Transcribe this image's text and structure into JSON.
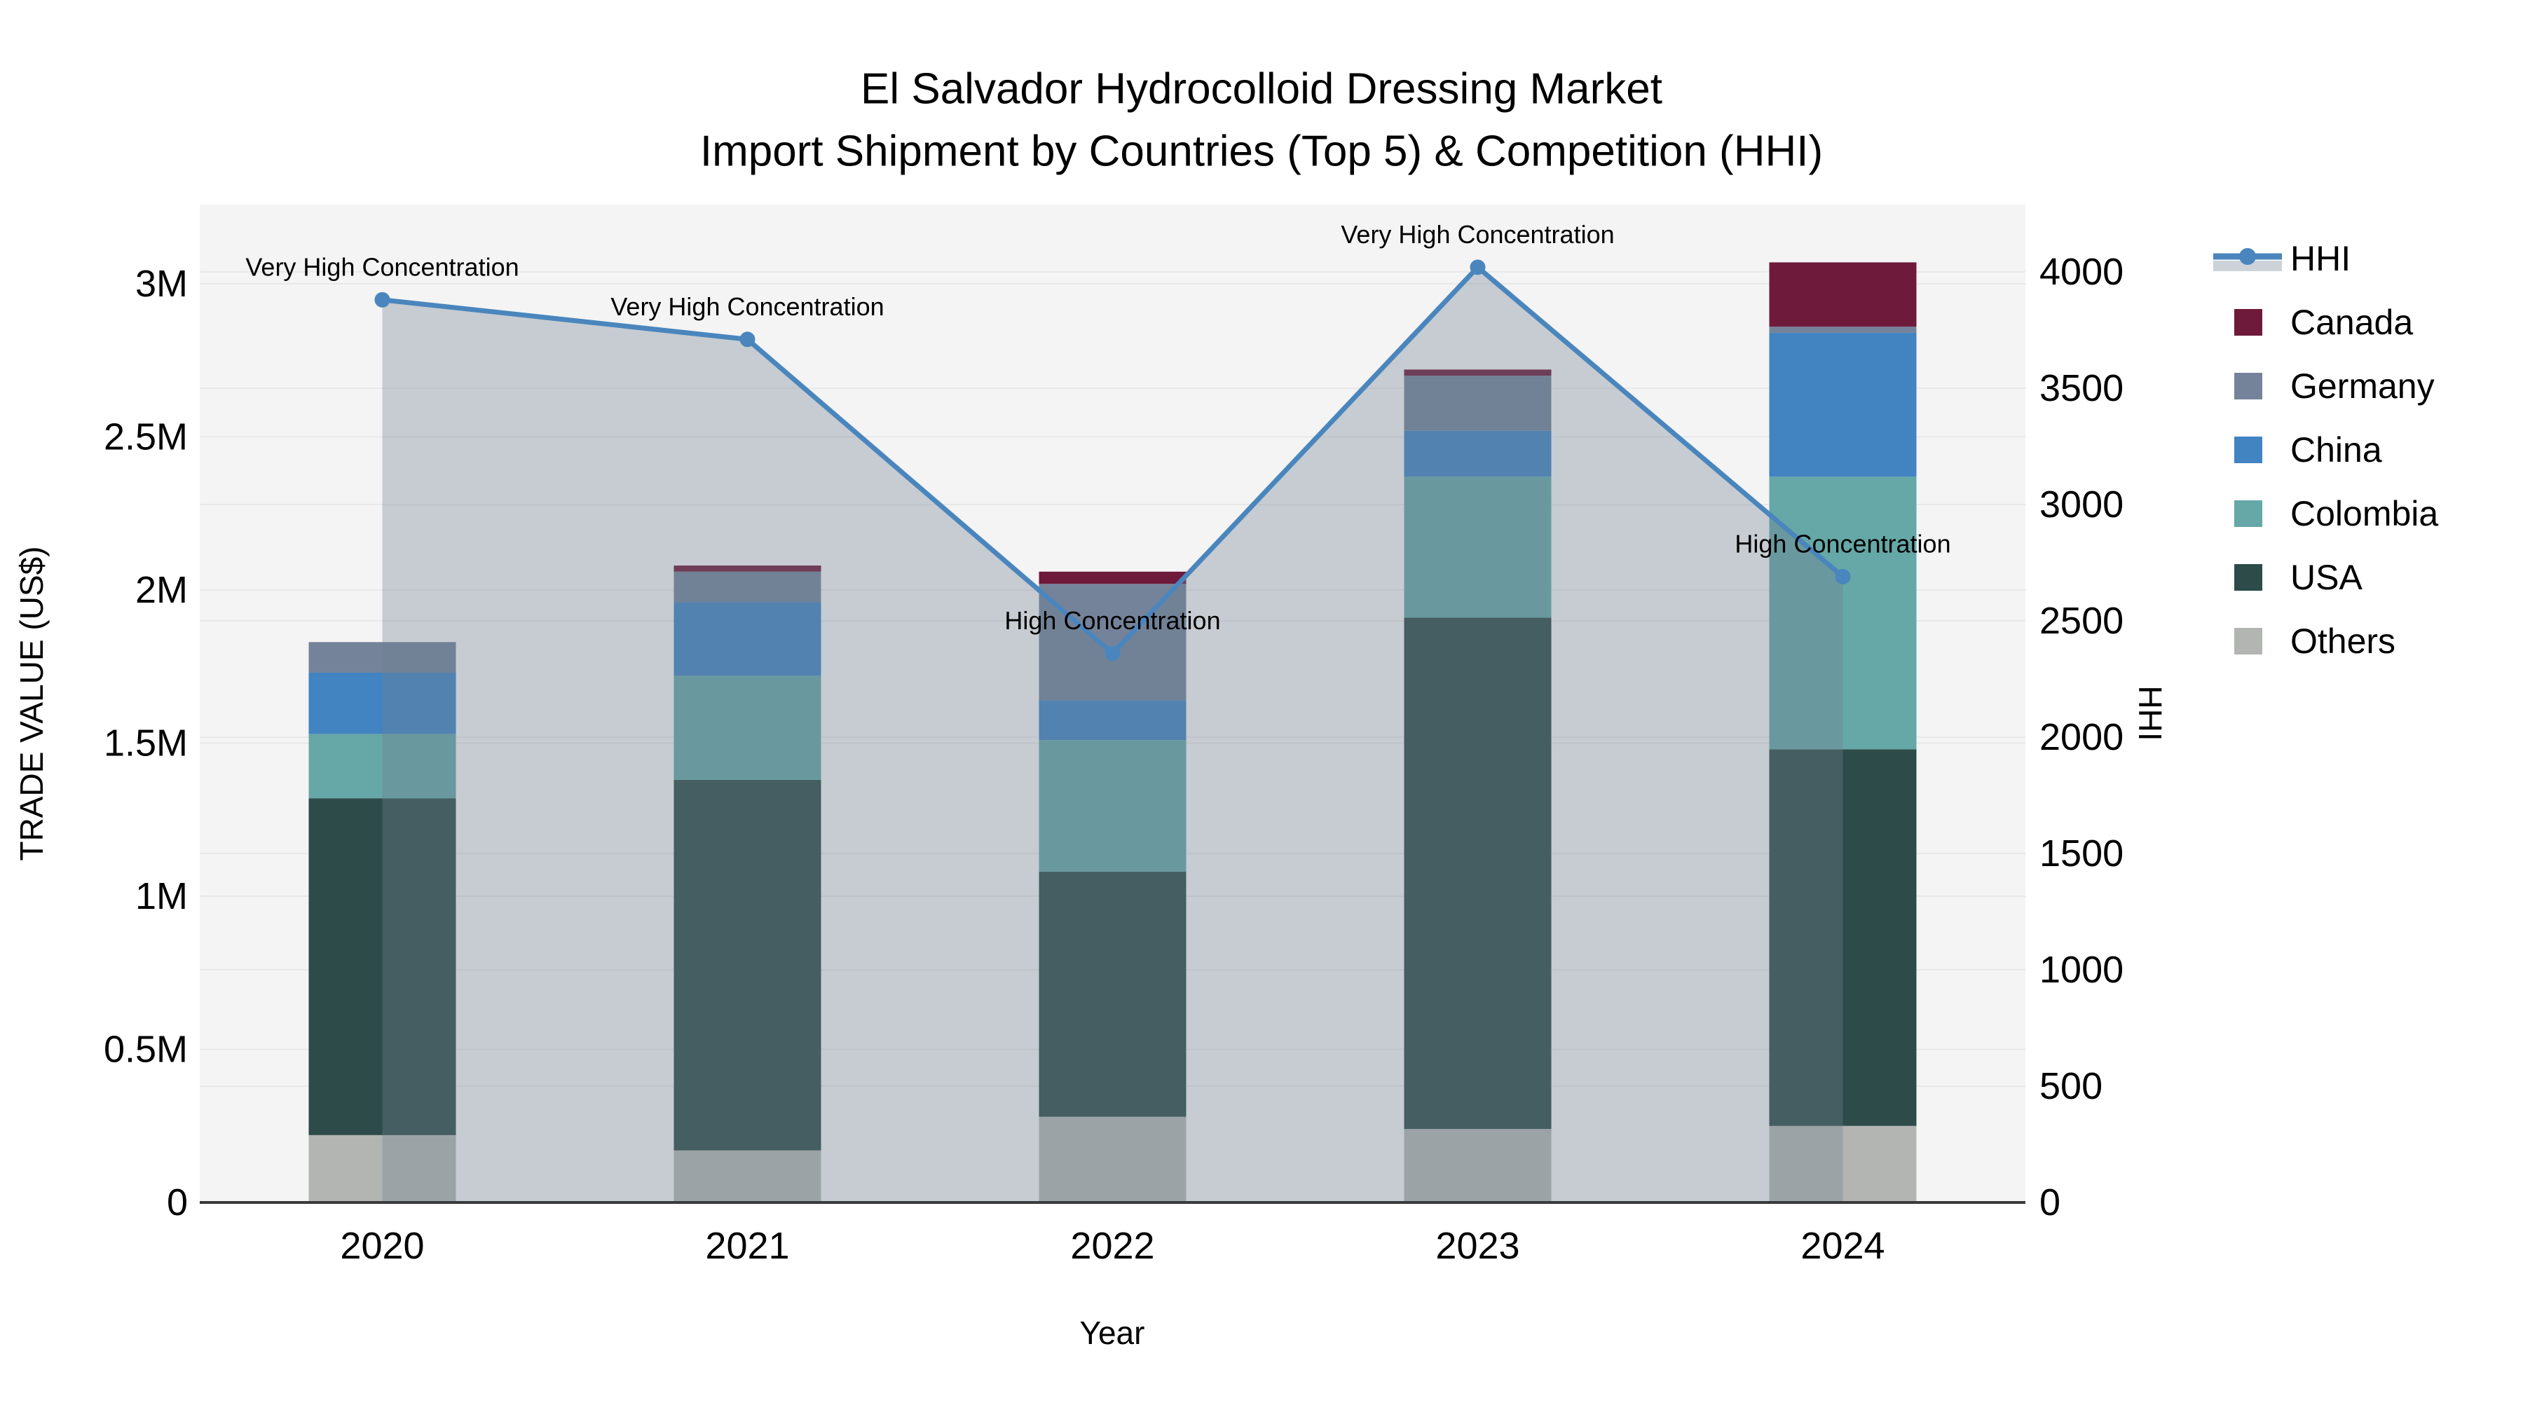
{
  "title": {
    "line1": "El Salvador Hydrocolloid Dressing Market",
    "line2": "Import Shipment by Countries (Top 5) & Competition (HHI)"
  },
  "axes": {
    "left": {
      "label": "TRADE VALUE (US$)",
      "ticks": [
        {
          "value": 0.0,
          "text": "0"
        },
        {
          "value": 0.5,
          "text": "0.5M"
        },
        {
          "value": 1.0,
          "text": "1M"
        },
        {
          "value": 1.5,
          "text": "1.5M"
        },
        {
          "value": 2.0,
          "text": "2M"
        },
        {
          "value": 2.5,
          "text": "2.5M"
        },
        {
          "value": 3.0,
          "text": "3M"
        }
      ]
    },
    "right": {
      "label": "HHI",
      "ticks": [
        {
          "value": 0,
          "text": "0"
        },
        {
          "value": 500,
          "text": "500"
        },
        {
          "value": 1000,
          "text": "1000"
        },
        {
          "value": 1500,
          "text": "1500"
        },
        {
          "value": 2000,
          "text": "2000"
        },
        {
          "value": 2500,
          "text": "2500"
        },
        {
          "value": 3000,
          "text": "3000"
        },
        {
          "value": 3500,
          "text": "3500"
        },
        {
          "value": 4000,
          "text": "4000"
        }
      ]
    },
    "x": {
      "label": "Year"
    }
  },
  "legend": [
    {
      "name": "HHI",
      "type": "line",
      "color": "#4a86bd"
    },
    {
      "name": "Canada",
      "type": "swatch",
      "color": "#6e1a3a"
    },
    {
      "name": "Germany",
      "type": "swatch",
      "color": "#74839a"
    },
    {
      "name": "China",
      "type": "swatch",
      "color": "#4283c2"
    },
    {
      "name": "Colombia",
      "type": "swatch",
      "color": "#66a7a7"
    },
    {
      "name": "USA",
      "type": "swatch",
      "color": "#2d4c49"
    },
    {
      "name": "Others",
      "type": "swatch",
      "color": "#b2b5b2"
    }
  ],
  "colors": {
    "hhi_line": "#4a86bd",
    "hhi_fill": "rgba(112,128,144,0.35)",
    "plot_bg": "#f4f4f4",
    "grid": "#e8e8e8",
    "axis_line": "#3a3a3a",
    "text": "#000000"
  },
  "chart_data": {
    "type": "bar",
    "subtype": "stacked-bar-with-line",
    "title": "El Salvador Hydrocolloid Dressing Market — Import Shipment by Countries (Top 5) & Competition (HHI)",
    "xlabel": "Year",
    "ylabel": "TRADE VALUE (US$)",
    "y2label": "HHI",
    "ylim": [
      0,
      3.26
    ],
    "y2lim": [
      0,
      4290
    ],
    "grid": true,
    "legend_position": "right",
    "value_units": "millions USD",
    "categories": [
      "2020",
      "2021",
      "2022",
      "2023",
      "2024"
    ],
    "series": [
      {
        "name": "Others",
        "color": "#b2b5b2",
        "values": [
          0.22,
          0.17,
          0.28,
          0.24,
          0.25
        ]
      },
      {
        "name": "USA",
        "color": "#2d4c49",
        "values": [
          1.1,
          1.21,
          0.8,
          1.67,
          1.23
        ]
      },
      {
        "name": "Colombia",
        "color": "#66a7a7",
        "values": [
          0.21,
          0.34,
          0.43,
          0.46,
          0.89
        ]
      },
      {
        "name": "China",
        "color": "#4283c2",
        "values": [
          0.2,
          0.24,
          0.13,
          0.15,
          0.47
        ]
      },
      {
        "name": "Germany",
        "color": "#74839a",
        "values": [
          0.1,
          0.1,
          0.38,
          0.18,
          0.02
        ]
      },
      {
        "name": "Canada",
        "color": "#6e1a3a",
        "values": [
          0.0,
          0.02,
          0.04,
          0.02,
          0.21
        ]
      }
    ],
    "line_series": {
      "name": "HHI",
      "color": "#4a86bd",
      "axis": "right",
      "values": [
        3880,
        3710,
        2360,
        4020,
        2690
      ]
    },
    "annotations": [
      {
        "category": "2020",
        "text": "Very High Concentration"
      },
      {
        "category": "2021",
        "text": "Very High Concentration"
      },
      {
        "category": "2022",
        "text": "High Concentration"
      },
      {
        "category": "2023",
        "text": "Very High Concentration"
      },
      {
        "category": "2024",
        "text": "High Concentration"
      }
    ]
  }
}
